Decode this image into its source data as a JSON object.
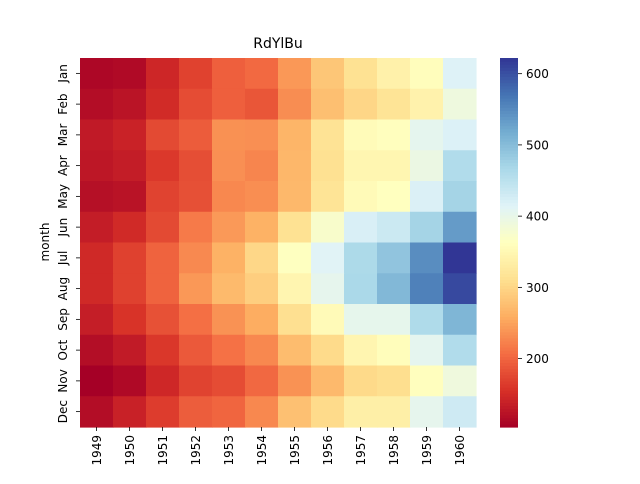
{
  "chart_data": {
    "type": "heatmap",
    "title": "RdYlBu",
    "xlabel": "",
    "ylabel": "month",
    "x_categories": [
      "1949",
      "1950",
      "1951",
      "1952",
      "1953",
      "1954",
      "1955",
      "1956",
      "1957",
      "1958",
      "1959",
      "1960"
    ],
    "y_categories": [
      "Jan",
      "Feb",
      "Mar",
      "Apr",
      "May",
      "Jun",
      "Jul",
      "Aug",
      "Sep",
      "Oct",
      "Nov",
      "Dec"
    ],
    "values": [
      [
        112,
        115,
        145,
        171,
        196,
        204,
        242,
        284,
        315,
        340,
        360,
        417
      ],
      [
        118,
        126,
        150,
        180,
        196,
        188,
        233,
        277,
        301,
        318,
        342,
        391
      ],
      [
        132,
        141,
        178,
        193,
        236,
        235,
        267,
        317,
        356,
        362,
        406,
        419
      ],
      [
        129,
        135,
        163,
        181,
        235,
        227,
        269,
        313,
        348,
        348,
        396,
        461
      ],
      [
        121,
        125,
        172,
        183,
        229,
        234,
        270,
        318,
        355,
        363,
        420,
        472
      ],
      [
        135,
        149,
        178,
        218,
        243,
        264,
        315,
        374,
        422,
        435,
        472,
        535
      ],
      [
        148,
        170,
        199,
        230,
        264,
        302,
        364,
        413,
        465,
        491,
        548,
        622
      ],
      [
        148,
        170,
        199,
        242,
        272,
        293,
        347,
        405,
        467,
        505,
        559,
        606
      ],
      [
        136,
        158,
        184,
        209,
        237,
        259,
        312,
        355,
        404,
        404,
        463,
        508
      ],
      [
        119,
        133,
        162,
        191,
        211,
        229,
        274,
        306,
        347,
        359,
        407,
        461
      ],
      [
        104,
        114,
        146,
        172,
        180,
        203,
        237,
        271,
        305,
        310,
        362,
        390
      ],
      [
        118,
        140,
        166,
        194,
        201,
        229,
        278,
        306,
        336,
        337,
        405,
        432
      ]
    ],
    "colormap": "RdYlBu",
    "vmin": 104,
    "vmax": 622,
    "colorbar_ticks": [
      200,
      300,
      400,
      500,
      600
    ],
    "grid": false
  }
}
